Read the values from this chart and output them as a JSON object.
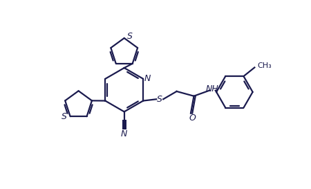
{
  "bg_color": "#ffffff",
  "line_color": "#1a1a4e",
  "line_width": 1.6,
  "figsize": [
    4.5,
    2.73
  ],
  "dpi": 100,
  "xlim": [
    0,
    9
  ],
  "ylim": [
    0,
    6
  ]
}
